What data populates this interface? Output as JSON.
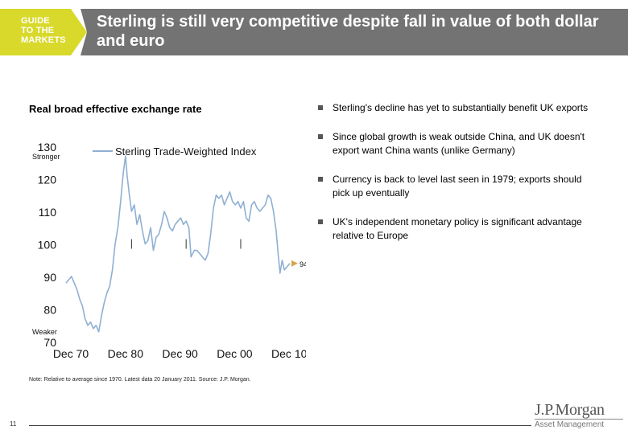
{
  "header": {
    "guide_label": "GUIDE\nTO THE\nMARKETS",
    "title": "Sterling is still very competitive despite fall in value of both dollar and euro"
  },
  "chart_title": "Real broad effective exchange rate",
  "bullets": [
    "Sterling's decline has yet to substantially benefit UK exports",
    "Since global growth is weak outside China, and UK doesn't export want China wants (unlike Germany)",
    "Currency is back to level last seen in 1979; exports should pick up eventually",
    "UK's independent monetary policy is significant advantage relative to Europe"
  ],
  "note": "Note: Relative to average since 1970. Latest data 20 January 2011. Source: J.P. Morgan.",
  "page_number": "11",
  "logo": {
    "main": "J.P.Morgan",
    "sub": "Asset Management"
  },
  "colors": {
    "series": "#8fb0d3",
    "guide": "#d8d92a",
    "titlebar": "#737373",
    "marker": "#d5a64a"
  },
  "chart_data": {
    "type": "line",
    "title": "",
    "xlabel": "",
    "ylabel": "",
    "ylim": [
      70,
      130
    ],
    "yticks": [
      70,
      80,
      90,
      100,
      110,
      120,
      130
    ],
    "ytick_labels": [
      "70",
      "80",
      "90",
      "100",
      "110",
      "120",
      "130"
    ],
    "xticks": [
      "Dec 70",
      "Dec 80",
      "Dec 90",
      "Dec 00",
      "Dec 10"
    ],
    "xlim": [
      1970,
      2011
    ],
    "stronger_label": "Stronger",
    "weaker_label": "Weaker",
    "legend": "top",
    "latest_label": "94",
    "latest_value": 94,
    "reference_line": 100,
    "series": [
      {
        "name": "Sterling Trade-Weighted Index",
        "x": [
          1970.0,
          1970.5,
          1971.0,
          1971.5,
          1972.0,
          1972.5,
          1973.0,
          1973.5,
          1974.0,
          1974.5,
          1975.0,
          1975.5,
          1976.0,
          1976.5,
          1977.0,
          1977.5,
          1978.0,
          1978.5,
          1979.0,
          1979.5,
          1980.0,
          1980.5,
          1980.9,
          1981.2,
          1981.6,
          1982.0,
          1982.5,
          1983.0,
          1983.5,
          1984.0,
          1984.5,
          1985.0,
          1985.5,
          1986.0,
          1986.5,
          1987.0,
          1987.5,
          1988.0,
          1988.5,
          1989.0,
          1989.5,
          1990.0,
          1990.5,
          1991.0,
          1991.5,
          1992.0,
          1992.5,
          1992.9,
          1993.5,
          1994.0,
          1994.5,
          1995.0,
          1995.5,
          1996.0,
          1996.5,
          1997.0,
          1997.5,
          1998.0,
          1998.5,
          1999.0,
          1999.5,
          2000.0,
          2000.5,
          2001.0,
          2001.5,
          2002.0,
          2002.5,
          2003.0,
          2003.5,
          2004.0,
          2004.5,
          2005.0,
          2005.5,
          2006.0,
          2006.5,
          2007.0,
          2007.5,
          2008.0,
          2008.5,
          2008.9,
          2009.2,
          2009.6,
          2010.0,
          2010.5,
          2011.0
        ],
        "values": [
          88,
          89,
          90,
          88,
          86,
          83,
          81,
          77,
          75,
          76,
          74,
          75,
          73,
          78,
          82,
          85,
          87,
          92,
          100,
          105,
          113,
          122,
          127,
          121,
          115,
          110,
          112,
          106,
          109,
          104,
          100,
          101,
          105,
          98,
          102,
          103,
          106,
          110,
          108,
          105,
          104,
          106,
          107,
          108,
          106,
          107,
          105,
          96,
          98,
          98,
          97,
          96,
          95,
          97,
          103,
          111,
          115,
          114,
          115,
          112,
          114,
          116,
          113,
          112,
          113,
          111,
          113,
          108,
          107,
          112,
          113,
          111,
          110,
          111,
          112,
          115,
          114,
          110,
          104,
          96,
          91,
          95,
          92,
          93,
          94
        ]
      }
    ]
  }
}
